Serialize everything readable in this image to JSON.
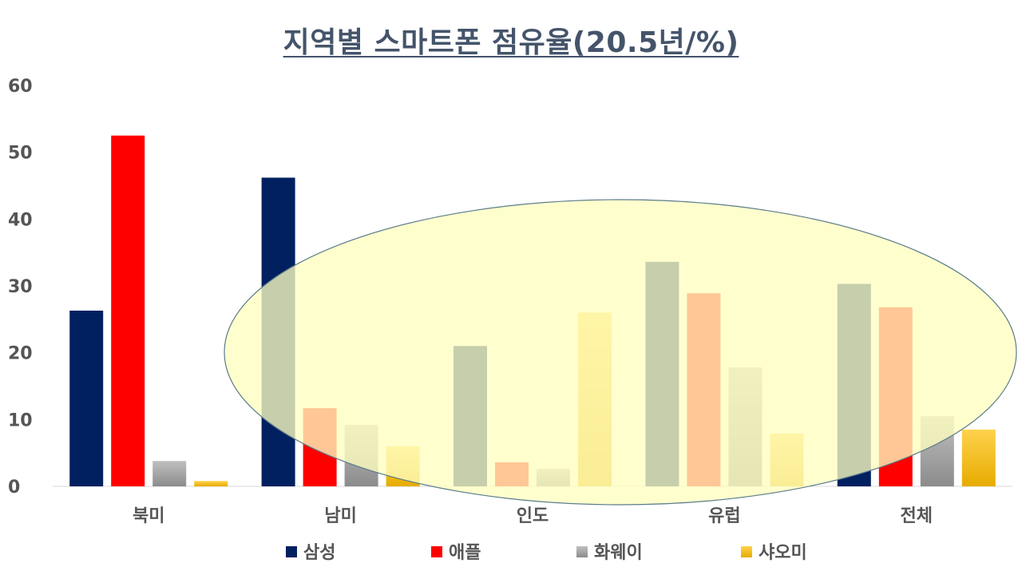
{
  "chart_data": {
    "type": "bar",
    "title": "지역별 스마트폰 점유율(20.5년/%)",
    "categories": [
      "북미",
      "남미",
      "인도",
      "유럽",
      "전체"
    ],
    "series": [
      {
        "name": "삼성",
        "color": "#002060",
        "values": [
          26.3,
          46.2,
          21.0,
          33.6,
          30.3
        ]
      },
      {
        "name": "애플",
        "color": "#ff0000",
        "values": [
          52.5,
          11.7,
          3.6,
          28.9,
          26.8
        ]
      },
      {
        "name": "화웨이",
        "color": "#a6a6a6",
        "values": [
          3.8,
          9.2,
          2.6,
          17.8,
          10.5
        ]
      },
      {
        "name": "샤오미",
        "color": "#ffc000",
        "values": [
          0.8,
          6.0,
          26.0,
          7.9,
          8.5
        ]
      }
    ],
    "ylim": [
      0,
      60
    ],
    "yticks": [
      0,
      10,
      20,
      30,
      40,
      50,
      60
    ],
    "grid": false,
    "legend_position": "bottom",
    "annotation": {
      "shape": "ellipse",
      "fill": "#ffffc0",
      "stroke": "#5b7b8a",
      "highlights": [
        "남미",
        "인도",
        "유럽",
        "전체"
      ]
    }
  }
}
